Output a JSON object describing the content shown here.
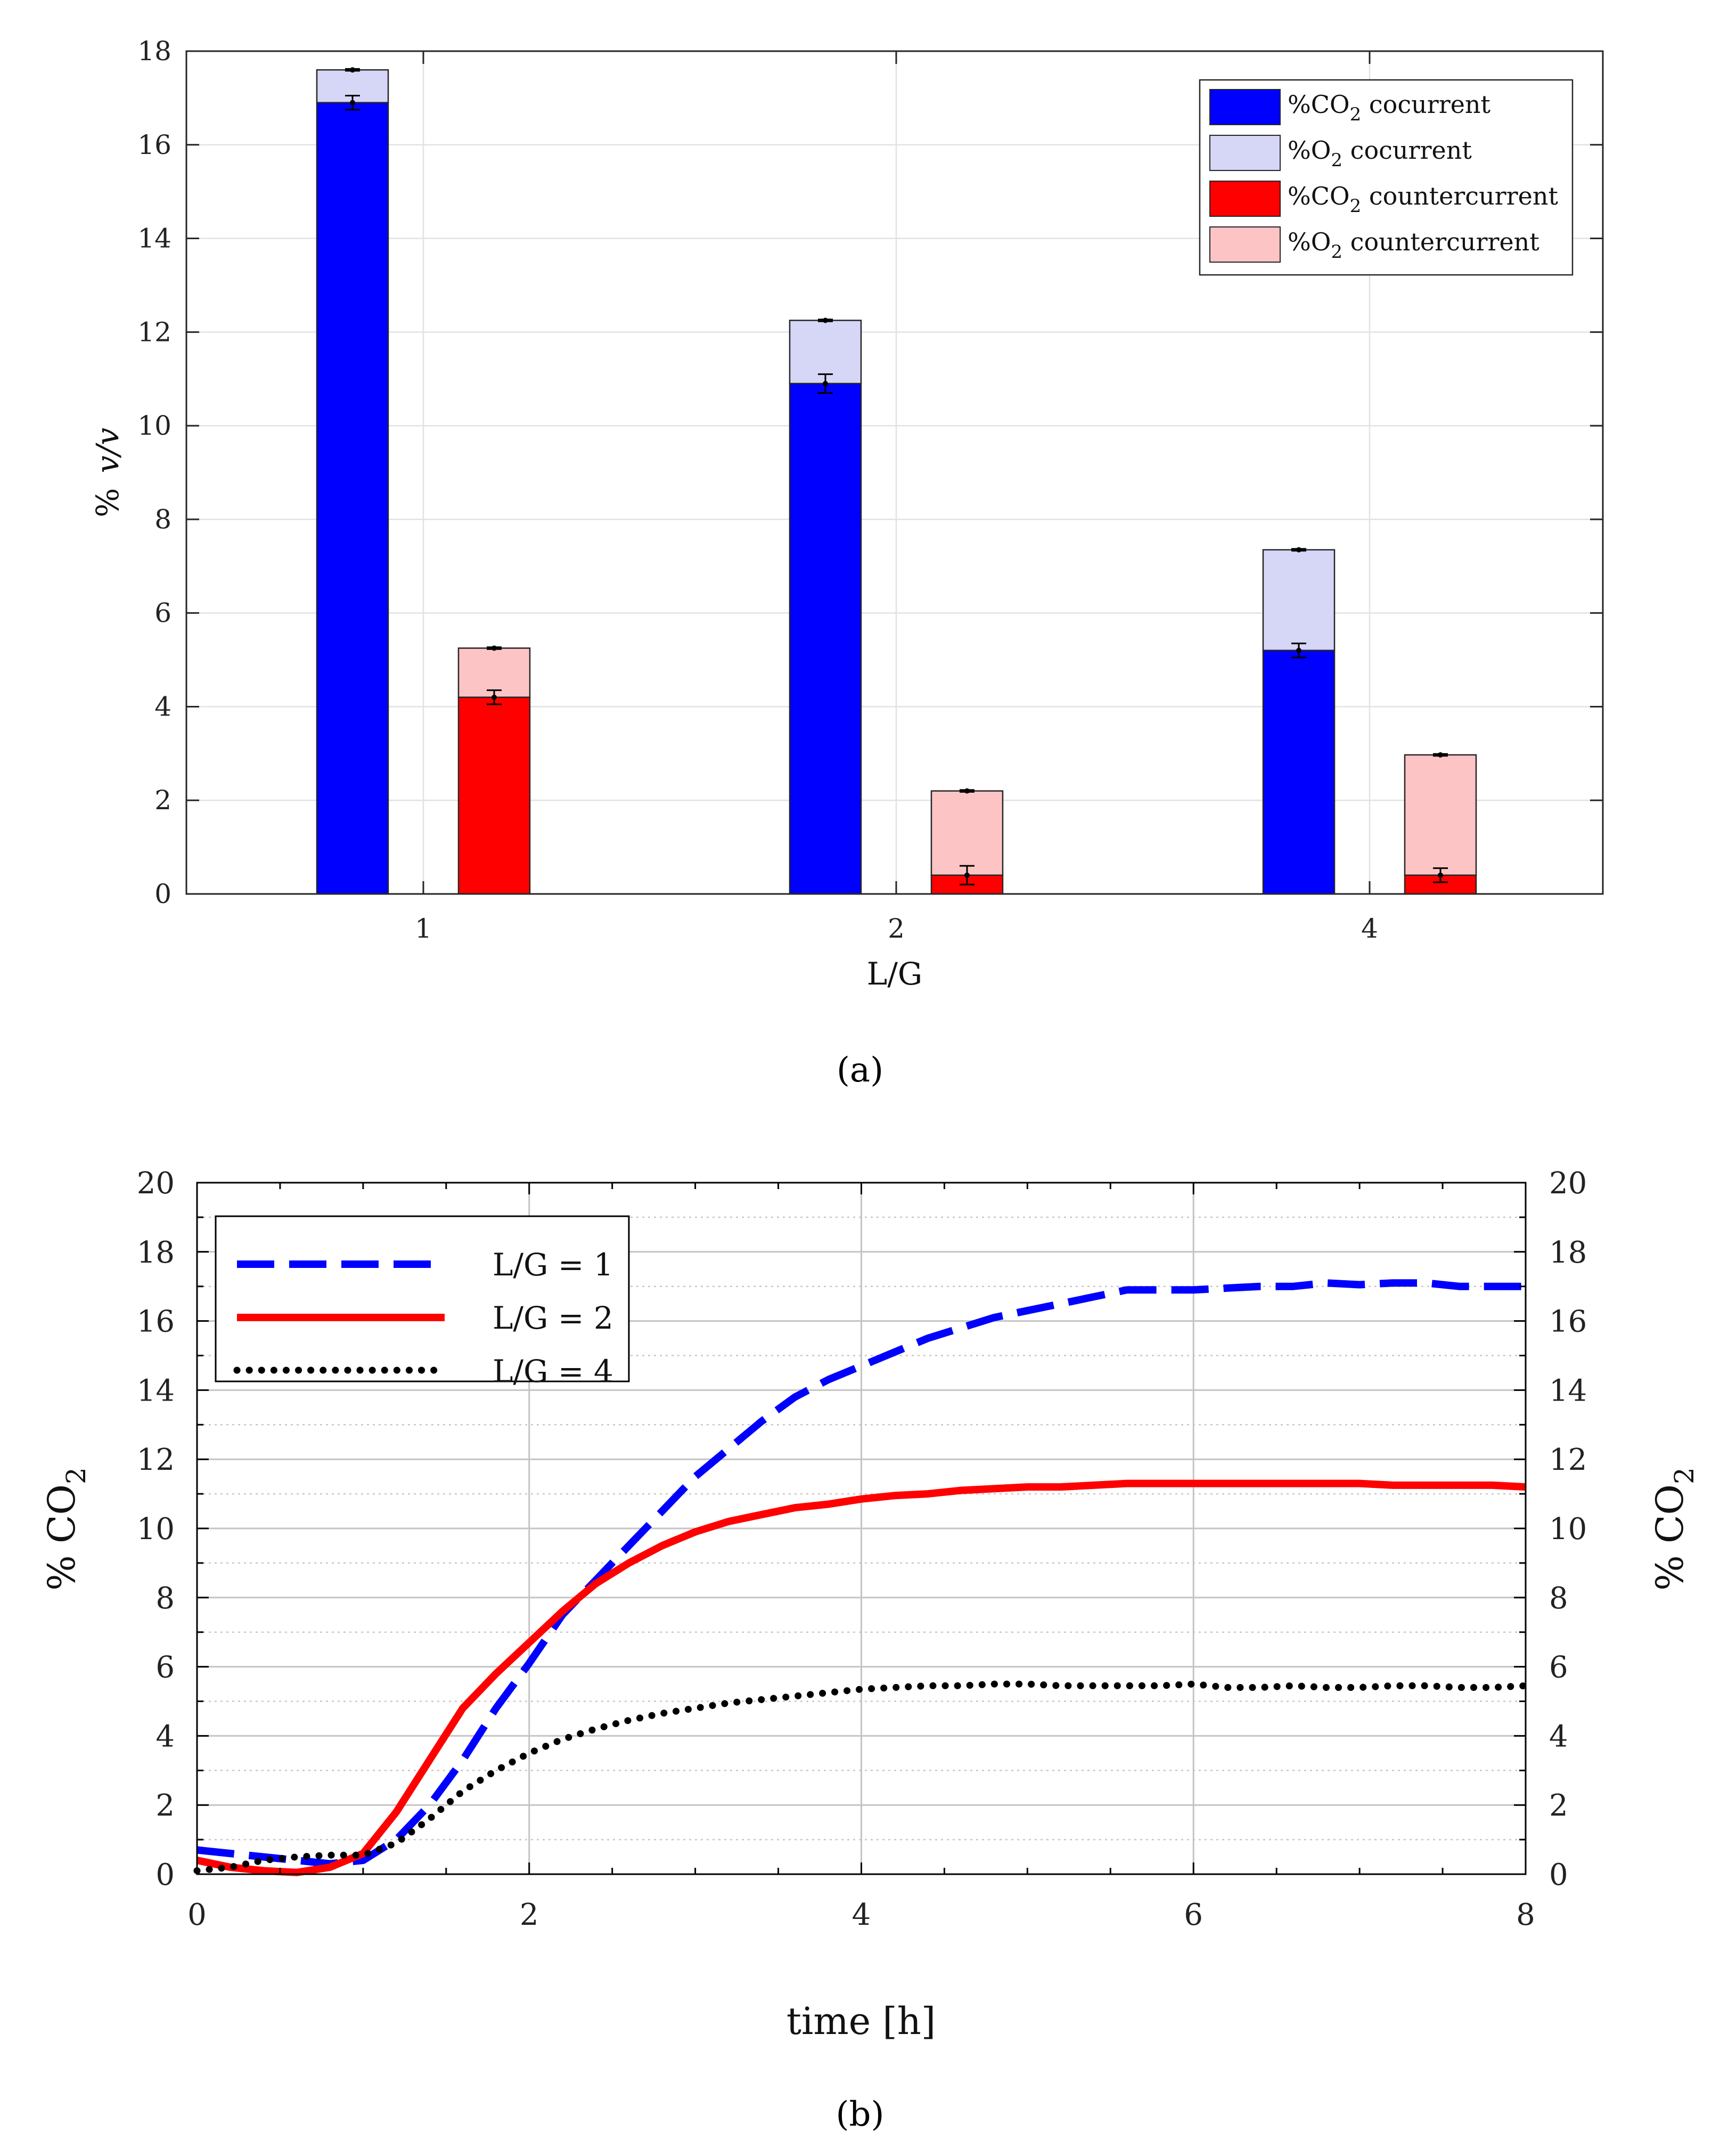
{
  "chart_data": [
    {
      "panel": "a",
      "caption": "(a)",
      "type": "bar",
      "subtype": "stacked-grouped",
      "xlabel": "L/G",
      "ylabel": "% v/v",
      "ylabel_parts": [
        "%",
        "v/v"
      ],
      "categories": [
        "1",
        "2",
        "4"
      ],
      "ylim": [
        0,
        18
      ],
      "yticks": [
        0,
        2,
        4,
        6,
        8,
        10,
        12,
        14,
        16,
        18
      ],
      "grid": true,
      "legend_position": "top-right",
      "legend": [
        {
          "base": "%CO",
          "sub": "2",
          "rest": " cocurrent",
          "color": "#0000ff"
        },
        {
          "base": "%O",
          "sub": "2",
          "rest": " cocurrent",
          "color": "#d6d6f7"
        },
        {
          "base": "%CO",
          "sub": "2",
          "rest": " countercurrent",
          "color": "#ff0000"
        },
        {
          "base": "%O",
          "sub": "2",
          "rest": " countercurrent",
          "color": "#fcc4c4"
        }
      ],
      "groups": [
        {
          "name": "cocurrent",
          "co2": [
            16.9,
            10.9,
            5.2
          ],
          "co2_err": [
            0.15,
            0.2,
            0.15
          ],
          "total": [
            17.6,
            12.25,
            7.35
          ],
          "total_err": [
            0.02,
            0.02,
            0.02
          ],
          "co2_color": "#0000ff",
          "o2_color": "#d6d6f7"
        },
        {
          "name": "countercurrent",
          "co2": [
            4.2,
            0.4,
            0.4
          ],
          "co2_err": [
            0.15,
            0.2,
            0.15
          ],
          "total": [
            5.25,
            2.2,
            2.97
          ],
          "total_err": [
            0.02,
            0.02,
            0.02
          ],
          "co2_color": "#ff0000",
          "o2_color": "#fcc4c4"
        }
      ]
    },
    {
      "panel": "b",
      "caption": "(b)",
      "type": "line",
      "xlabel": "time [h]",
      "ylabel": "% CO2",
      "ylabel_parts": [
        "% CO",
        "2"
      ],
      "xlim": [
        0,
        8
      ],
      "ylim": [
        0,
        20
      ],
      "xticks": [
        0,
        2,
        4,
        6,
        8
      ],
      "yticks": [
        0,
        2,
        4,
        6,
        8,
        10,
        12,
        14,
        16,
        18,
        20
      ],
      "grid": true,
      "legend_position": "top-left",
      "series": [
        {
          "name": "L/G = 1",
          "color": "#0000ff",
          "style": "dashed",
          "x": [
            0,
            0.2,
            0.4,
            0.6,
            0.8,
            1.0,
            1.2,
            1.4,
            1.6,
            1.8,
            2.0,
            2.2,
            2.4,
            2.6,
            2.8,
            3.0,
            3.2,
            3.4,
            3.6,
            3.8,
            4.0,
            4.2,
            4.4,
            4.6,
            4.8,
            5.0,
            5.2,
            5.4,
            5.6,
            5.8,
            6.0,
            6.2,
            6.4,
            6.6,
            6.8,
            7.0,
            7.2,
            7.4,
            7.6,
            7.8,
            8.0
          ],
          "y": [
            0.7,
            0.6,
            0.5,
            0.4,
            0.3,
            0.4,
            1.0,
            2.0,
            3.3,
            4.8,
            6.1,
            7.5,
            8.5,
            9.5,
            10.5,
            11.5,
            12.3,
            13.1,
            13.8,
            14.3,
            14.7,
            15.1,
            15.5,
            15.8,
            16.1,
            16.3,
            16.5,
            16.7,
            16.9,
            16.9,
            16.9,
            16.95,
            17.0,
            17.0,
            17.1,
            17.05,
            17.1,
            17.1,
            17.0,
            17.0,
            17.0
          ]
        },
        {
          "name": "L/G = 2",
          "color": "#ff0000",
          "style": "solid",
          "x": [
            0,
            0.2,
            0.4,
            0.6,
            0.8,
            1.0,
            1.2,
            1.4,
            1.6,
            1.8,
            2.0,
            2.2,
            2.4,
            2.6,
            2.8,
            3.0,
            3.2,
            3.4,
            3.6,
            3.8,
            4.0,
            4.2,
            4.4,
            4.6,
            4.8,
            5.0,
            5.2,
            5.4,
            5.6,
            5.8,
            6.0,
            6.2,
            6.4,
            6.6,
            6.8,
            7.0,
            7.2,
            7.4,
            7.6,
            7.8,
            8.0
          ],
          "y": [
            0.4,
            0.2,
            0.1,
            0.05,
            0.2,
            0.6,
            1.8,
            3.3,
            4.8,
            5.8,
            6.7,
            7.6,
            8.4,
            9.0,
            9.5,
            9.9,
            10.2,
            10.4,
            10.6,
            10.7,
            10.85,
            10.95,
            11.0,
            11.1,
            11.15,
            11.2,
            11.2,
            11.25,
            11.3,
            11.3,
            11.3,
            11.3,
            11.3,
            11.3,
            11.3,
            11.3,
            11.25,
            11.25,
            11.25,
            11.25,
            11.2
          ]
        },
        {
          "name": "L/G = 4",
          "color": "#000000",
          "style": "dotted",
          "x": [
            0,
            0.2,
            0.4,
            0.6,
            0.8,
            1.0,
            1.2,
            1.4,
            1.6,
            1.8,
            2.0,
            2.2,
            2.4,
            2.6,
            2.8,
            3.0,
            3.2,
            3.4,
            3.6,
            3.8,
            4.0,
            4.2,
            4.4,
            4.6,
            4.8,
            5.0,
            5.2,
            5.4,
            5.6,
            5.8,
            6.0,
            6.2,
            6.4,
            6.6,
            6.8,
            7.0,
            7.2,
            7.4,
            7.6,
            7.8,
            8.0
          ],
          "y": [
            0.1,
            0.2,
            0.4,
            0.5,
            0.55,
            0.55,
            0.9,
            1.6,
            2.4,
            3.0,
            3.5,
            3.9,
            4.2,
            4.45,
            4.65,
            4.8,
            4.95,
            5.05,
            5.15,
            5.25,
            5.35,
            5.4,
            5.45,
            5.45,
            5.5,
            5.5,
            5.45,
            5.45,
            5.45,
            5.45,
            5.5,
            5.4,
            5.4,
            5.45,
            5.4,
            5.4,
            5.45,
            5.45,
            5.4,
            5.4,
            5.45
          ]
        }
      ]
    }
  ]
}
